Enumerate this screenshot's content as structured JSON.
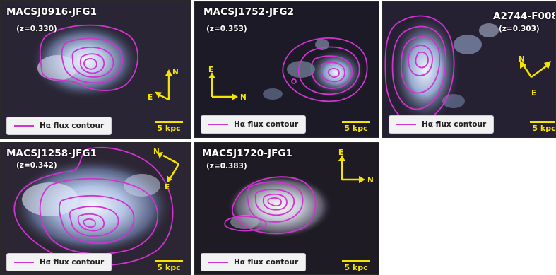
{
  "legend_label": "Hα flux contour",
  "scale_label": "5 kpc",
  "colors": {
    "contour": "#d033d0",
    "scale": "#f5e400"
  },
  "panels": [
    {
      "title": "MACSJ0916-JFG1",
      "redshift": "(z=0.330)",
      "compass": [
        "E",
        "N"
      ]
    },
    {
      "title": "MACSJ1752-JFG2",
      "redshift": "(z=0.353)",
      "compass": [
        "E",
        "N"
      ]
    },
    {
      "title": "A2744-F008",
      "redshift": "(z=0.303)",
      "compass": [
        "N",
        "E"
      ]
    },
    {
      "title": "MACSJ1258-JFG1",
      "redshift": "(z=0.342)",
      "compass": [
        "N",
        "E"
      ]
    },
    {
      "title": "MACSJ1720-JFG1",
      "redshift": "(z=0.383)",
      "compass": [
        "E",
        "N"
      ]
    }
  ]
}
